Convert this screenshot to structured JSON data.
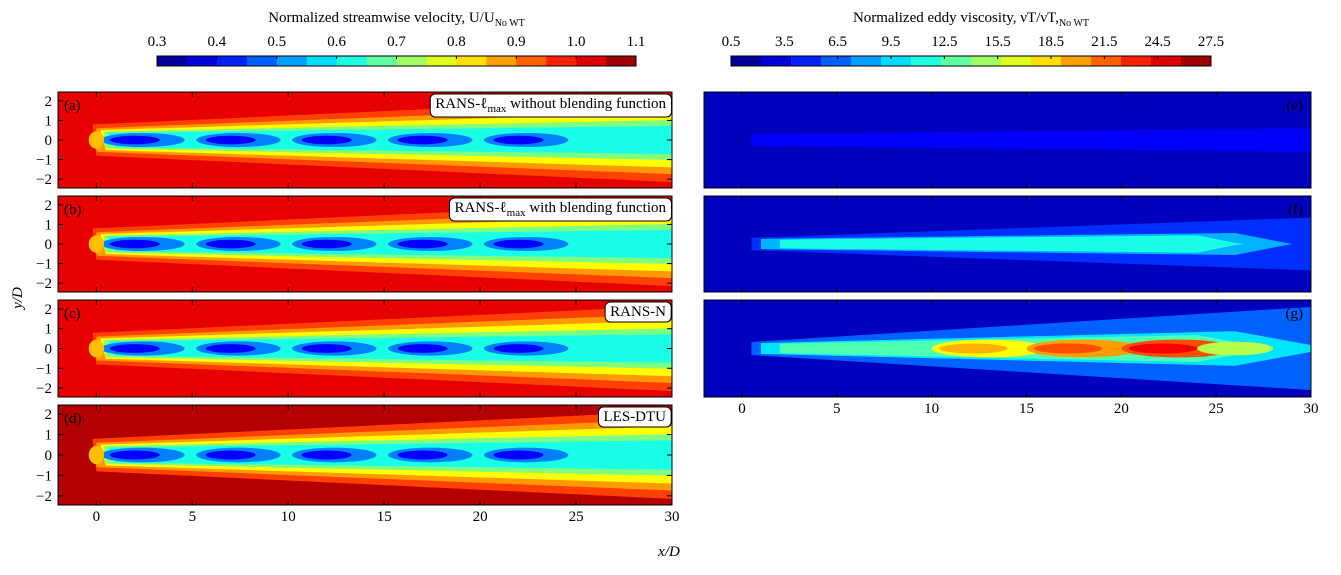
{
  "colorbars": [
    {
      "title": {
        "text": "Normalized streamwise velocity, U/U",
        "sub": "No WT"
      },
      "lim": [
        0.3,
        1.1
      ],
      "ticks": [
        0.3,
        0.4,
        0.5,
        0.6,
        0.7,
        0.8,
        0.9,
        {
          "value": 1,
          "label": "1.0"
        },
        1.1
      ]
    },
    {
      "title": {
        "text": "Normalized eddy viscosity, νT/νT,",
        "sub": "No WT"
      },
      "lim": [
        0.5,
        27.5
      ],
      "ticks": [
        0.5,
        3.5,
        6.5,
        9.5,
        12.5,
        15.5,
        18.5,
        21.5,
        24.5,
        27.5
      ]
    }
  ],
  "x_label": "x/D",
  "y_label": "y/D",
  "panels": [
    {
      "label": "(a)",
      "title": {
        "text": "RANS-ℓ",
        "sub": "max",
        "tail": " without blending function"
      },
      "xlim": [
        -2,
        30
      ],
      "ylim": [
        -2.45,
        2.45
      ],
      "xticks": [
        0,
        5,
        10,
        15,
        20,
        25,
        30
      ],
      "xtick_labels": false,
      "yticks": [
        2,
        1,
        0,
        {
          "value": -1,
          "label": "−1"
        },
        {
          "value": -2,
          "label": "−2"
        }
      ]
    },
    {
      "label": "(b)",
      "title": {
        "text": "RANS-ℓ",
        "sub": "max",
        "tail": " with blending function"
      },
      "xlim": [
        -2,
        30
      ],
      "ylim": [
        -2.45,
        2.45
      ],
      "xticks": [
        0,
        5,
        10,
        15,
        20,
        25,
        30
      ],
      "xtick_labels": false,
      "yticks": [
        2,
        1,
        0,
        {
          "value": -1,
          "label": "−1"
        },
        {
          "value": -2,
          "label": "−2"
        }
      ]
    },
    {
      "label": "(c)",
      "title": {
        "text": "RANS-N"
      },
      "xlim": [
        -2,
        30
      ],
      "ylim": [
        -2.45,
        2.45
      ],
      "xticks": [
        0,
        5,
        10,
        15,
        20,
        25,
        30
      ],
      "xtick_labels": false,
      "yticks": [
        2,
        1,
        0,
        {
          "value": -1,
          "label": "−1"
        },
        {
          "value": -2,
          "label": "−2"
        }
      ]
    },
    {
      "label": "(d)",
      "title": {
        "text": "LES-DTU"
      },
      "xlim": [
        -2,
        30
      ],
      "ylim": [
        -2.45,
        2.45
      ],
      "xticks": [
        0,
        5,
        10,
        15,
        20,
        25,
        30
      ],
      "xtick_labels": true,
      "yticks": [
        2,
        1,
        0,
        {
          "value": -1,
          "label": "−1"
        },
        {
          "value": -2,
          "label": "−2"
        }
      ]
    },
    {
      "label": "(e)",
      "xlim": [
        -2,
        30
      ],
      "ylim": [
        -2.45,
        2.45
      ],
      "xticks": [
        0,
        5,
        10,
        15,
        20,
        25,
        30
      ],
      "xtick_labels": false
    },
    {
      "label": "(f)",
      "xlim": [
        -2,
        30
      ],
      "ylim": [
        -2.45,
        2.45
      ],
      "xticks": [
        0,
        5,
        10,
        15,
        20,
        25,
        30
      ],
      "xtick_labels": false
    },
    {
      "label": "(g)",
      "xlim": [
        -2,
        30
      ],
      "ylim": [
        -2.45,
        2.45
      ],
      "xticks": [
        0,
        5,
        10,
        15,
        20,
        25,
        30
      ],
      "xtick_labels": true
    }
  ]
}
